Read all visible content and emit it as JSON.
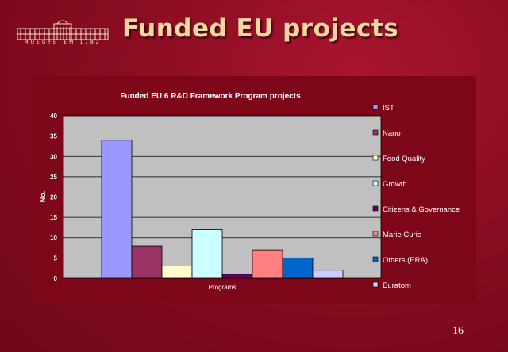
{
  "slide": {
    "title": "Funded EU projects",
    "logo_caption": "MŰEGYETEM 1782",
    "page_number": "16"
  },
  "colors": {
    "background": "#8a0d22",
    "plot_area": "#c0c0c0",
    "title_text": "#f3d9a0"
  },
  "chart_data": {
    "type": "bar",
    "title": "Funded EU 6 R&D Framework Program projects",
    "xlabel": "",
    "ylabel": "No.",
    "categories": [
      "Programs"
    ],
    "ylim": [
      0,
      40
    ],
    "yticks": [
      0,
      5,
      10,
      15,
      20,
      25,
      30,
      35,
      40
    ],
    "grid": true,
    "legend_position": "right",
    "series": [
      {
        "name": "IST",
        "values": [
          34
        ],
        "color": "#9999ff"
      },
      {
        "name": "Nano",
        "values": [
          8
        ],
        "color": "#993366"
      },
      {
        "name": "Food Quality",
        "values": [
          3
        ],
        "color": "#ffffcc"
      },
      {
        "name": "Growth",
        "values": [
          12
        ],
        "color": "#ccffff"
      },
      {
        "name": "Citizens & Governance",
        "values": [
          1
        ],
        "color": "#660066"
      },
      {
        "name": "Marie Curie",
        "values": [
          7
        ],
        "color": "#ff8080"
      },
      {
        "name": "Others (ERA)",
        "values": [
          5
        ],
        "color": "#0066cc"
      },
      {
        "name": "Euratom",
        "values": [
          2
        ],
        "color": "#ccccff"
      }
    ]
  }
}
